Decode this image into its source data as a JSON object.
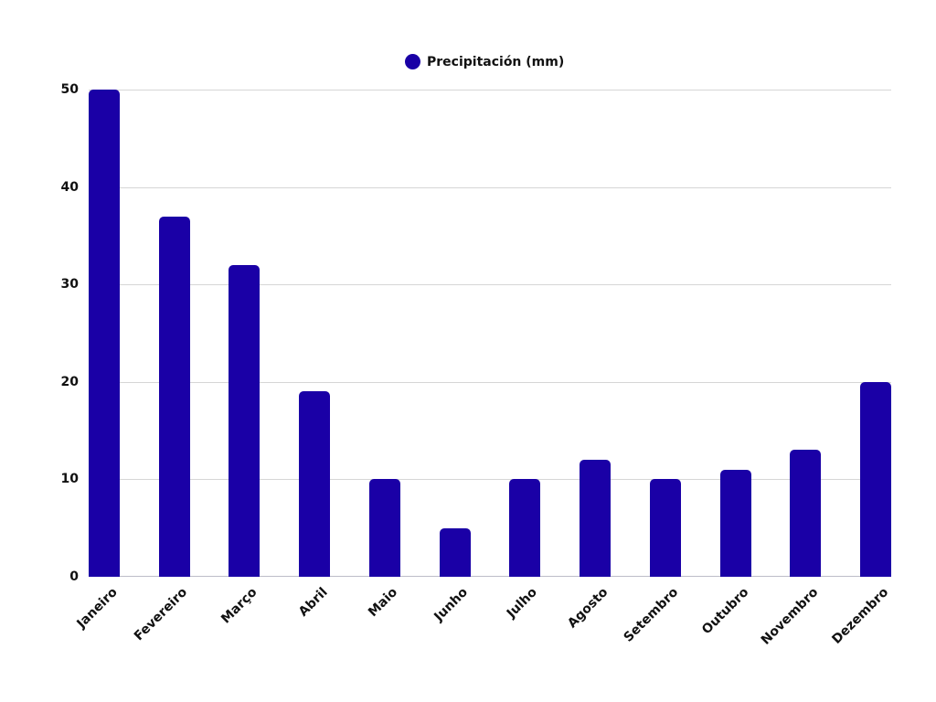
{
  "legend": {
    "label": "Precipitación (mm)",
    "color": "#1a00a6"
  },
  "chart_data": {
    "type": "bar",
    "title": "",
    "xlabel": "",
    "ylabel": "",
    "ylim": [
      0,
      50
    ],
    "yticks": [
      0,
      10,
      20,
      30,
      40,
      50
    ],
    "grid": true,
    "legend_position": "top",
    "categories": [
      "Janeiro",
      "Fevereiro",
      "Março",
      "Abril",
      "Maio",
      "Junho",
      "Julho",
      "Agosto",
      "Setembro",
      "Outubro",
      "Novembro",
      "Dezembro"
    ],
    "series": [
      {
        "name": "Precipitación (mm)",
        "color": "#1a00a6",
        "values": [
          50,
          37,
          32,
          19,
          10,
          5,
          10,
          12,
          10,
          11,
          13,
          20
        ]
      }
    ]
  }
}
